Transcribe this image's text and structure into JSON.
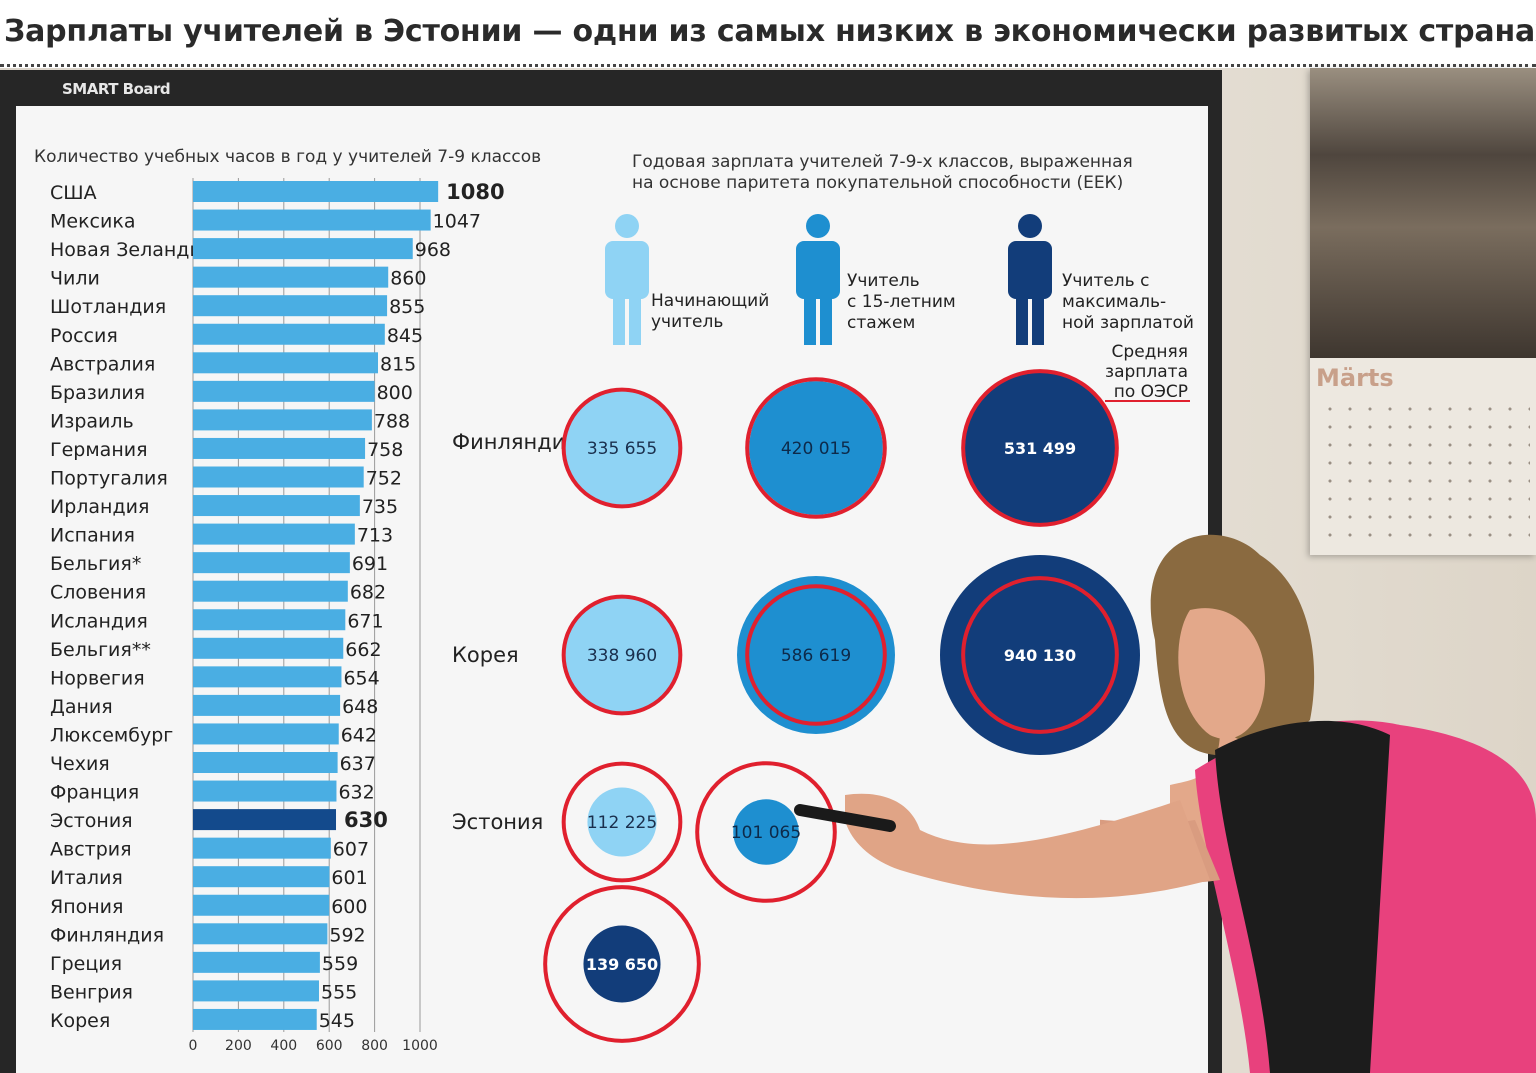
{
  "headline": "Зарплаты учителей в Эстонии — одни из самых низких в экономически развитых странах",
  "board_brand": "SMART Board",
  "calendar_month": "Märts",
  "colors": {
    "bar": "#4aaee3",
    "bar_highlight": "#134a8c",
    "light": "#8fd3f4",
    "mid": "#1e8fd0",
    "dark": "#123d7a",
    "oecd_ring": "#e0202e"
  },
  "chart_data": [
    {
      "type": "bar",
      "orientation": "horizontal",
      "title": "Количество учебных часов в год у учителей 7-9 классов",
      "categories": [
        "США",
        "Мексика",
        "Новая Зеландия",
        "Чили",
        "Шотландия",
        "Россия",
        "Австралия",
        "Бразилия",
        "Израиль",
        "Германия",
        "Португалия",
        "Ирландия",
        "Испания",
        "Бельгия*",
        "Словения",
        "Исландия",
        "Бельгия**",
        "Норвегия",
        "Дания",
        "Люксембург",
        "Чехия",
        "Франция",
        "Эстония",
        "Австрия",
        "Италия",
        "Япония",
        "Финляндия",
        "Греция",
        "Венгрия",
        "Корея"
      ],
      "values": [
        1080,
        1047,
        968,
        860,
        855,
        845,
        815,
        800,
        788,
        758,
        752,
        735,
        713,
        691,
        682,
        671,
        662,
        654,
        648,
        642,
        637,
        632,
        630,
        607,
        601,
        600,
        592,
        559,
        555,
        545
      ],
      "value_labels": [
        "1080",
        "1047",
        "968",
        "860",
        "855",
        "845",
        "815",
        "800",
        "788",
        "758",
        "752",
        "735",
        "713",
        "691",
        "682",
        "671",
        "662",
        "654",
        "648",
        "642",
        "637",
        "632",
        "630",
        "607",
        "601",
        "600",
        "592",
        "559",
        "555",
        "545"
      ],
      "highlight": [
        "США",
        "Эстония"
      ],
      "xlim": [
        0,
        1080
      ],
      "xticks": [
        0,
        200,
        400,
        600,
        800,
        1000
      ],
      "xtick_labels": [
        "0",
        "200",
        "400",
        "600",
        "800",
        "1000"
      ],
      "grid": true
    },
    {
      "type": "bubble",
      "title": "Годовая зарплата учителей 7-9-х классов, выраженная на основе паритета покупательной способности (ЕЕК)",
      "columns": [
        {
          "key": "start",
          "label": "Начинающий учитель",
          "color": "light"
        },
        {
          "key": "mid",
          "label": "Учитель с 15-летним стажем",
          "color": "mid"
        },
        {
          "key": "max",
          "label": "Учитель с максималь-ной зарплатой",
          "color": "dark"
        }
      ],
      "legend_oecd": "Средняя зарплата по ОЭСР",
      "series": [
        {
          "country": "Финляндия",
          "values": [
            335655,
            420015,
            531499
          ],
          "labels": [
            "335 655",
            "420 015",
            "531 499"
          ]
        },
        {
          "country": "Корея",
          "values": [
            338960,
            586619,
            940130
          ],
          "labels": [
            "338 960",
            "586 619",
            "940 130"
          ]
        },
        {
          "country": "Эстония",
          "values": [
            112225,
            101065,
            139650
          ],
          "labels": [
            "112 225",
            "101 065",
            "139 650"
          ]
        }
      ],
      "oecd_average": [
        320000,
        445000,
        555000
      ]
    }
  ]
}
